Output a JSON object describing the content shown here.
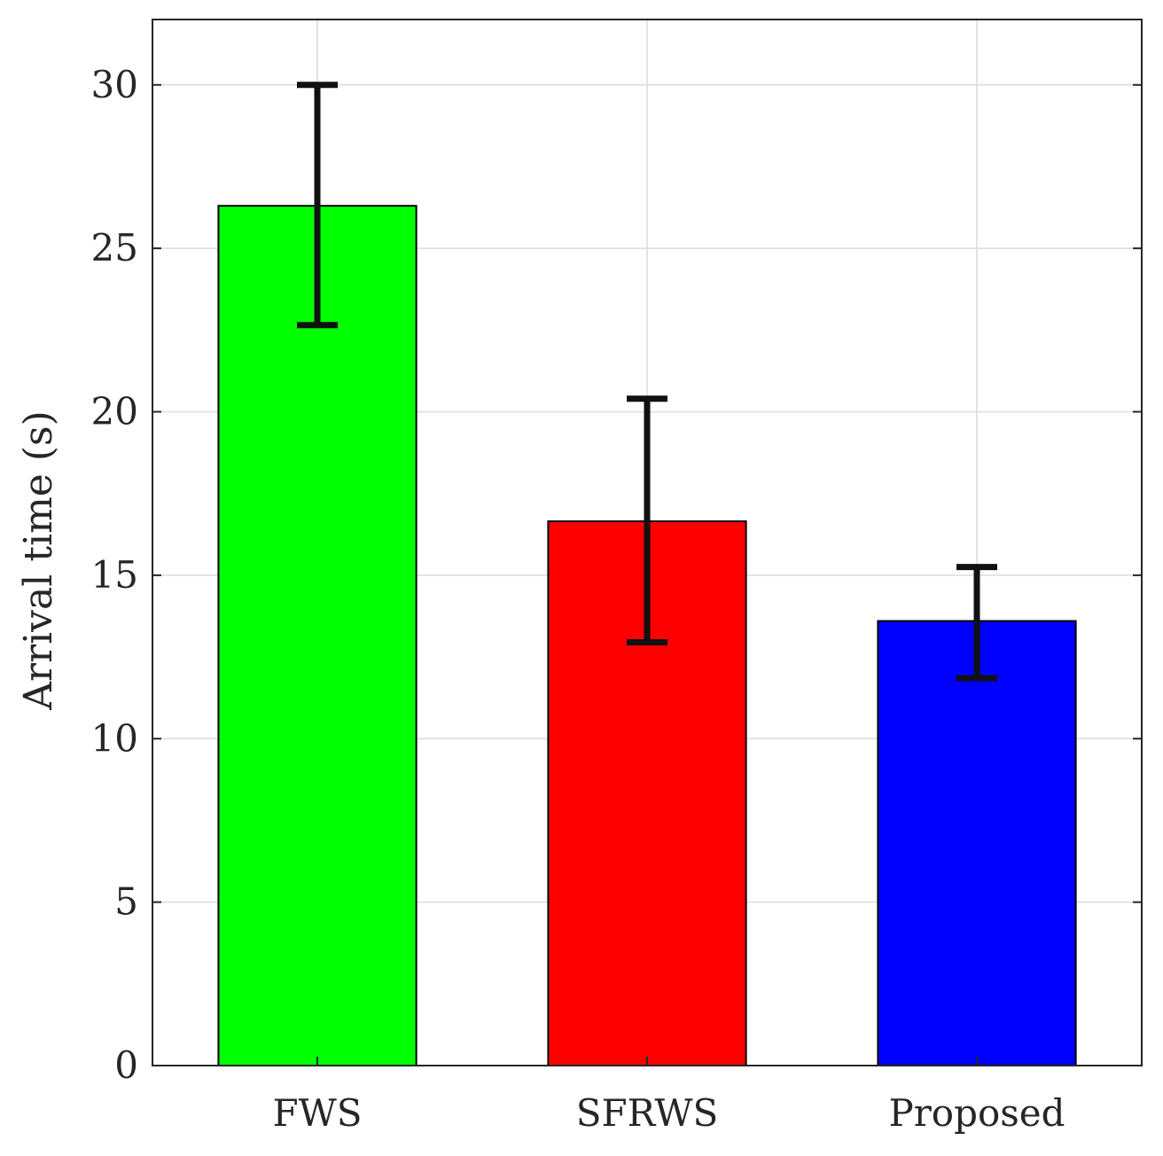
{
  "chart_data": {
    "type": "bar",
    "title": "",
    "xlabel": "",
    "ylabel": "Arrival time (s)",
    "categories": [
      "FWS",
      "SFRWS",
      "Proposed"
    ],
    "values": [
      26.3,
      16.65,
      13.6
    ],
    "error_low": [
      22.65,
      12.95,
      11.85
    ],
    "error_high": [
      30.0,
      20.4,
      15.25
    ],
    "colors": [
      "#00ff00",
      "#ff0000",
      "#0000ff"
    ],
    "ylim": [
      0,
      32
    ],
    "yticks": [
      0,
      5,
      10,
      15,
      20,
      25,
      30
    ],
    "grid": true,
    "legend": "none"
  }
}
